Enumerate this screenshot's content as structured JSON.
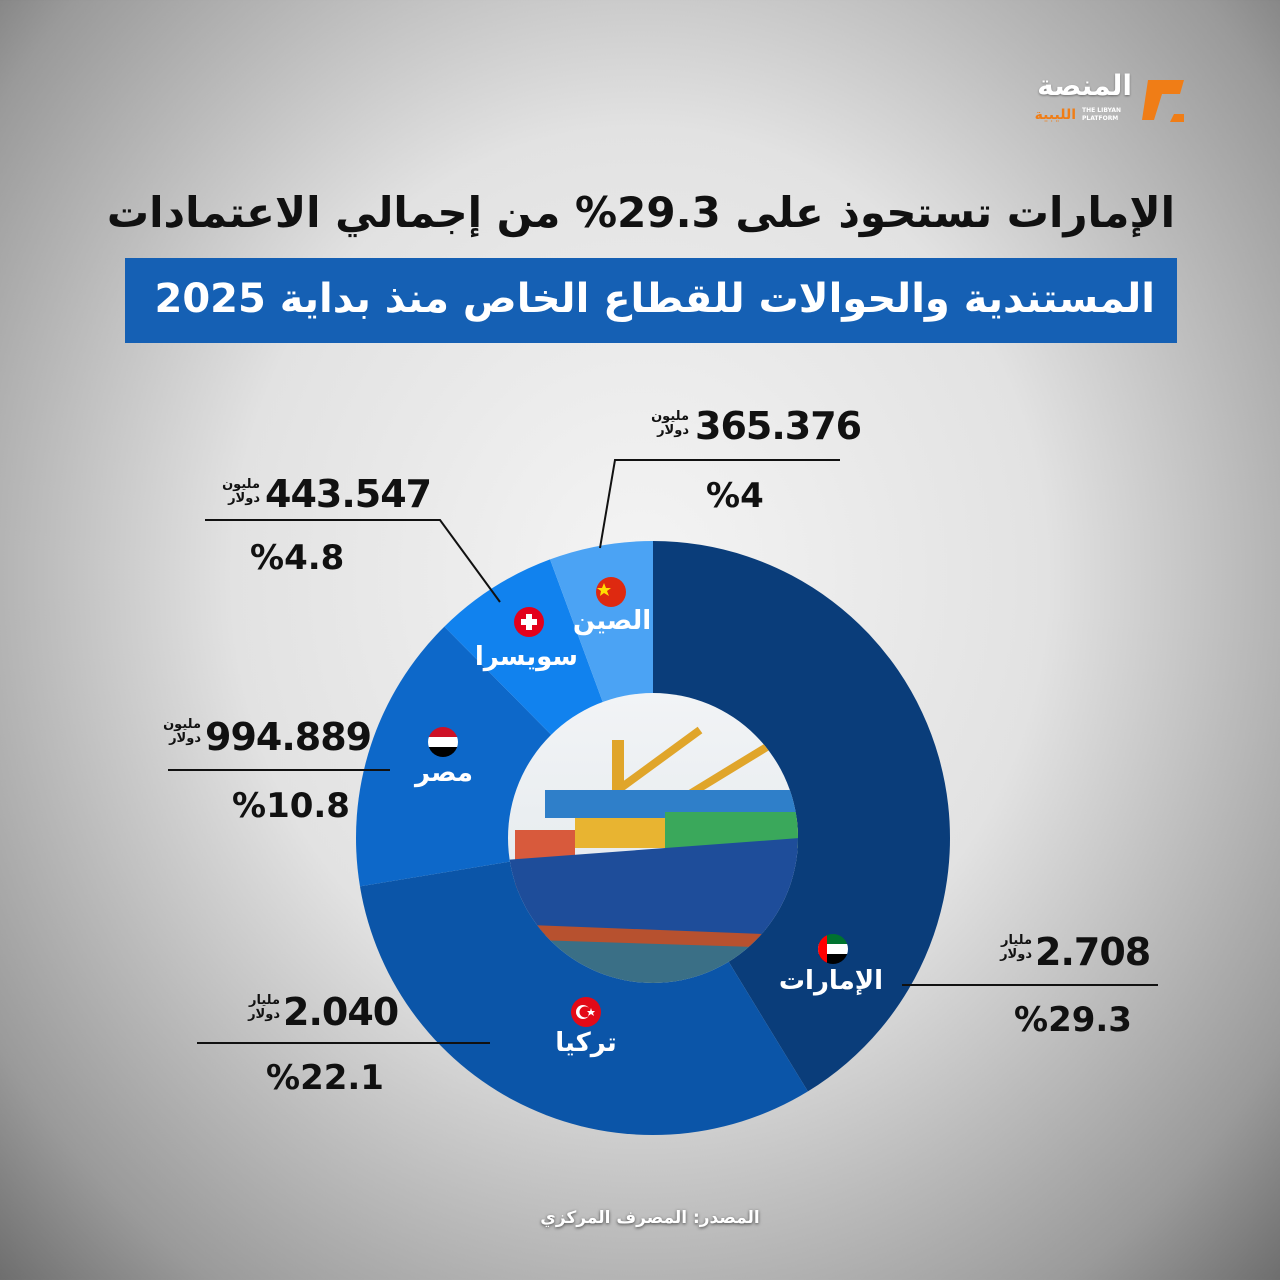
{
  "logo": {
    "arabic": "المنصة",
    "arabic_sub": "الليبية",
    "english": "THE LIBYAN PLATFORM",
    "accent": "#f07d16"
  },
  "header": {
    "title_line1": "الإمارات تستحوذ على 29.3% من إجمالي الاعتمادات",
    "title_line2": "المستندية والحوالات للقطاع الخاص منذ بداية 2025",
    "banner_color": "#1560b4"
  },
  "chart_data": {
    "type": "pie",
    "donut": true,
    "categories": [
      "الإمارات",
      "تركيا",
      "مصر",
      "سويسرا",
      "الصين"
    ],
    "series": [
      {
        "values_musd": [
          2708,
          2040,
          994.889,
          443.547,
          365.376
        ],
        "percent": [
          29.3,
          22.1,
          10.8,
          4.8,
          4
        ]
      }
    ],
    "value_labels": [
      "2.708",
      "2.040",
      "994.889",
      "443.547",
      "365.376"
    ],
    "unit_labels": [
      [
        "مليار",
        "دولار"
      ],
      [
        "مليار",
        "دولار"
      ],
      [
        "مليون",
        "دولار"
      ],
      [
        "مليون",
        "دولار"
      ],
      [
        "مليون",
        "دولار"
      ]
    ],
    "percent_labels": [
      "%29.3",
      "%22.1",
      "%10.8",
      "%4.8",
      "%4"
    ],
    "colors": [
      "#0a3d7a",
      "#0b55a8",
      "#0d68c9",
      "#1182ee",
      "#4ba3f4"
    ],
    "flags": [
      "uae-flag",
      "turkey-flag",
      "egypt-flag",
      "switzerland-flag",
      "china-flag"
    ],
    "legend": "none"
  },
  "footer": {
    "source": "المصدر: المصرف المركزي"
  }
}
